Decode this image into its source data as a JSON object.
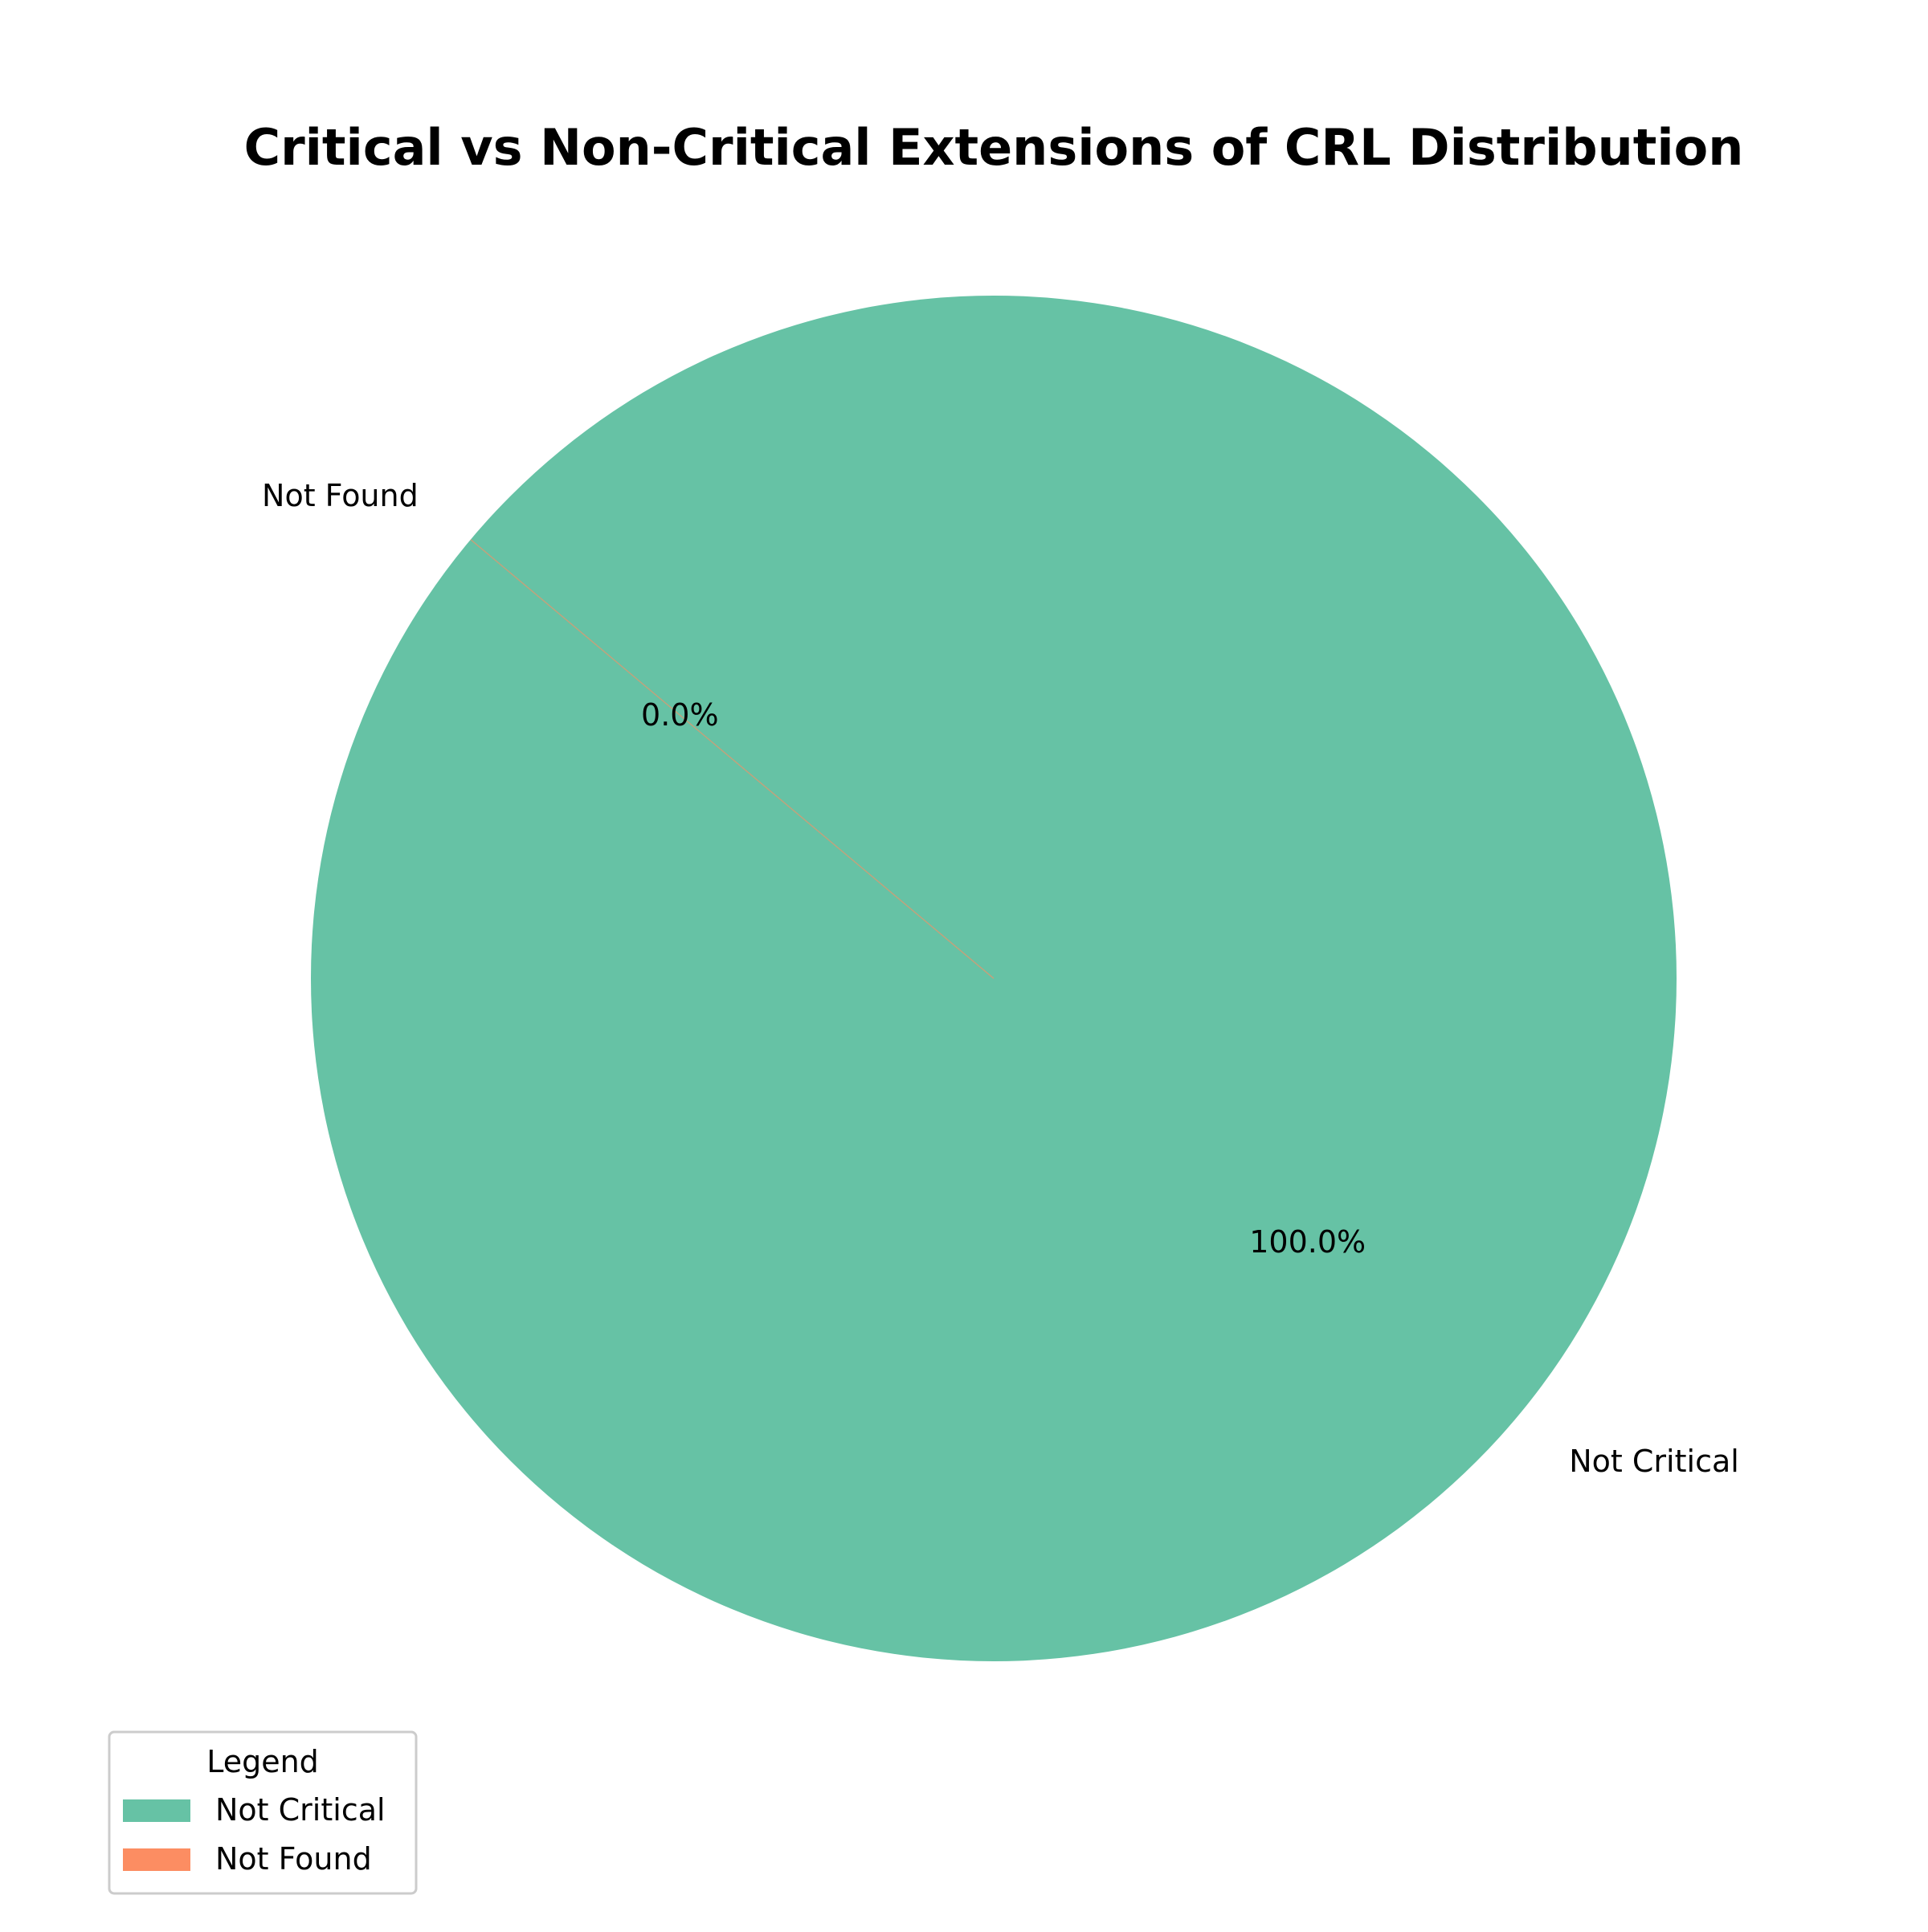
{
  "chart_data": {
    "type": "pie",
    "title": "Critical vs Non-Critical Extensions of CRL Distribution",
    "slices": [
      {
        "label": "Not Critical",
        "value": 100.0,
        "pct_label": "100.0%",
        "color": "#66c2a5"
      },
      {
        "label": "Not Found",
        "value": 0.0,
        "pct_label": "0.0%",
        "color": "#fc8d62"
      }
    ],
    "start_angle_deg": 140,
    "legend": {
      "title": "Legend",
      "placement": "lower-left",
      "entries": [
        "Not Critical",
        "Not Found"
      ]
    }
  }
}
